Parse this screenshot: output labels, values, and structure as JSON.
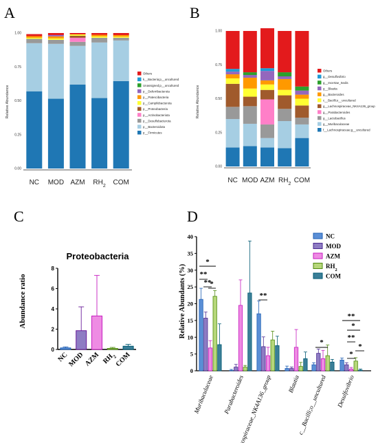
{
  "panels": {
    "a": "A",
    "b": "B",
    "c": "C",
    "d": "D"
  },
  "groups": [
    "NC",
    "MOD",
    "AZM",
    "RH2",
    "COM"
  ],
  "chart_data": [
    {
      "id": "A",
      "type": "bar",
      "stacked": true,
      "ylabel": "Relative Abundance",
      "ylim": [
        0,
        1
      ],
      "yticks": [
        "0.00",
        "0.25",
        "0.50",
        "0.75",
        "1.00"
      ],
      "categories": [
        "NC",
        "MOD",
        "AZM",
        "RH2",
        "COM"
      ],
      "series": [
        {
          "name": "p__Firmicutes",
          "color": "#1f77b4",
          "values": [
            0.57,
            0.515,
            0.62,
            0.52,
            0.645
          ]
        },
        {
          "name": "p__Bacteroidota",
          "color": "#a6cee3",
          "values": [
            0.355,
            0.405,
            0.285,
            0.41,
            0.3
          ]
        },
        {
          "name": "p__Desulfobacterota",
          "color": "#999999",
          "values": [
            0.032,
            0.03,
            0.03,
            0.035,
            0.02
          ]
        },
        {
          "name": "p__Actinobacteriota",
          "color": "#ff7fc8",
          "values": [
            0.0,
            0.0,
            0.03,
            0.0,
            0.0
          ]
        },
        {
          "name": "p__Proteobacteria",
          "color": "#a05a2c",
          "values": [
            0.0,
            0.0,
            0.015,
            0.0,
            0.0
          ]
        },
        {
          "name": "p__Campilobacterota",
          "color": "#ffff33",
          "values": [
            0.008,
            0.01,
            0.01,
            0.01,
            0.008
          ]
        },
        {
          "name": "p__Patescibacteria",
          "color": "#ff9900",
          "values": [
            0.012,
            0.015,
            0.0,
            0.012,
            0.012
          ]
        },
        {
          "name": "p__Deferribacterota",
          "color": "#9467bd",
          "values": [
            0.0,
            0.01,
            0.0,
            0.0,
            0.0
          ]
        },
        {
          "name": "Unassigned;p__uncultured",
          "color": "#2ca02c",
          "values": [
            0.0,
            0.0,
            0.0,
            0.0,
            0.0
          ]
        },
        {
          "name": "k__Bacteria;p__uncultured",
          "color": "#1f9bd6",
          "values": [
            0.0,
            0.0,
            0.0,
            0.0,
            0.0
          ]
        },
        {
          "name": "Others",
          "color": "#e31a1c",
          "values": [
            0.015,
            0.015,
            0.01,
            0.013,
            0.015
          ]
        }
      ]
    },
    {
      "id": "B",
      "type": "bar",
      "stacked": true,
      "ylabel": "Relative Abundance",
      "ylim": [
        0,
        1
      ],
      "yticks": [
        "0.00",
        "0.25",
        "0.50",
        "0.75",
        "1.00"
      ],
      "categories": [
        "NC",
        "MOD",
        "AZM",
        "RH2",
        "COM"
      ],
      "series": [
        {
          "name": "f__Lachnospiraceae;g__uncultured",
          "color": "#1f77b4",
          "values": [
            0.14,
            0.15,
            0.14,
            0.135,
            0.21
          ]
        },
        {
          "name": "g__Muribaculaceae",
          "color": "#a6cee3",
          "values": [
            0.21,
            0.165,
            0.07,
            0.2,
            0.1
          ]
        },
        {
          "name": "g__Lactobacillus",
          "color": "#999999",
          "values": [
            0.09,
            0.13,
            0.1,
            0.09,
            0.05
          ]
        },
        {
          "name": "g__Parabacteroides",
          "color": "#ff7fc8",
          "values": [
            0.0,
            0.0,
            0.185,
            0.0,
            0.0
          ]
        },
        {
          "name": "g__Lachnospiraceae_NK4A136_group",
          "color": "#a05a2c",
          "values": [
            0.17,
            0.07,
            0.07,
            0.1,
            0.09
          ]
        },
        {
          "name": "c__Bacilli;o__uncultured",
          "color": "#ffff33",
          "values": [
            0.04,
            0.06,
            0.04,
            0.04,
            0.05
          ]
        },
        {
          "name": "g__Bacteroides",
          "color": "#ff9900",
          "values": [
            0.03,
            0.08,
            0.03,
            0.08,
            0.03
          ]
        },
        {
          "name": "g__Blautia",
          "color": "#9467bd",
          "values": [
            0.02,
            0.02,
            0.07,
            0.02,
            0.03
          ]
        },
        {
          "name": "g__Incertae_Sedis",
          "color": "#2ca02c",
          "values": [
            0.0,
            0.02,
            0.0,
            0.03,
            0.03
          ]
        },
        {
          "name": "g__Desulfovibrio",
          "color": "#1f9bd6",
          "values": [
            0.02,
            0.0,
            0.02,
            0.0,
            0.0
          ]
        },
        {
          "name": "Others",
          "color": "#e31a1c",
          "values": [
            0.28,
            0.305,
            0.295,
            0.305,
            0.41
          ]
        }
      ]
    },
    {
      "id": "C",
      "type": "bar",
      "title": "Proteobacteria",
      "ylabel": "Abundance ratio",
      "ylim": [
        0,
        8
      ],
      "yticks": [
        "0",
        "2",
        "4",
        "6",
        "8"
      ],
      "categories": [
        "NC",
        "MOD",
        "AZM",
        "RH2",
        "COM"
      ],
      "values": [
        0.15,
        1.85,
        3.3,
        0.1,
        0.32
      ],
      "errors": [
        0.1,
        2.35,
        4.0,
        0.1,
        0.18
      ],
      "colors": [
        "#5b8fd6",
        "#8e7cc3",
        "#ee8be3",
        "#b6d77a",
        "#3b7f98"
      ],
      "edge_colors": [
        "#1f5fb4",
        "#6a1b9a",
        "#c51bbf",
        "#4f8a10",
        "#005a73"
      ]
    },
    {
      "id": "D",
      "type": "bar",
      "ylabel": "Relative Abundants (%)",
      "ylim": [
        0,
        40
      ],
      "yticks": [
        "0",
        "5",
        "10",
        "15",
        "20",
        "25",
        "30",
        "35",
        "40"
      ],
      "categories": [
        "Muribaculaceae",
        "Parabacteroides",
        "Lachnospiraceae_NK4A136_group",
        "Blautia",
        "c__Bacilli;o__uncultured",
        "Desulfovibrio"
      ],
      "series": [
        {
          "name": "NC",
          "color": "#5b8fd6",
          "edge": "#1f5fb4",
          "values": [
            21.3,
            0.1,
            17.0,
            0.7,
            1.8,
            3.2
          ],
          "errors": [
            3.3,
            0.3,
            3.8,
            0.7,
            0.6,
            0.6
          ]
        },
        {
          "name": "MOD",
          "color": "#8e7cc3",
          "edge": "#4b2a91",
          "values": [
            15.7,
            1.1,
            7.2,
            0.7,
            5.2,
            1.8
          ],
          "errors": [
            1.8,
            0.8,
            2.9,
            0.4,
            1.3,
            0.6
          ]
        },
        {
          "name": "AZM",
          "color": "#ee8be3",
          "edge": "#c51bbf",
          "values": [
            6.8,
            19.5,
            4.5,
            7.0,
            3.6,
            0.5
          ],
          "errors": [
            2.2,
            7.6,
            2.5,
            5.3,
            2.5,
            0.5
          ]
        },
        {
          "name": "RH2",
          "color": "#b6d77a",
          "edge": "#4f8a10",
          "values": [
            22.2,
            1.1,
            9.2,
            1.3,
            4.5,
            2.9
          ],
          "errors": [
            1.7,
            0.5,
            2.6,
            1.2,
            3.2,
            1.0
          ]
        },
        {
          "name": "COM",
          "color": "#3b7f98",
          "edge": "#005a73",
          "values": [
            7.8,
            23.2,
            7.5,
            3.6,
            2.6,
            0.2
          ],
          "errors": [
            6.2,
            15.5,
            2.8,
            2.0,
            0.8,
            0.3
          ]
        }
      ],
      "significance": [
        {
          "label": "*"
        },
        {
          "label": "**"
        },
        {
          "label": "**"
        },
        {
          "label": "*"
        },
        {
          "label": "**"
        },
        {
          "label": "*"
        },
        {
          "label": "**"
        },
        {
          "label": "*"
        },
        {
          "label": "**"
        },
        {
          "label": "*"
        },
        {
          "label": "*"
        }
      ]
    }
  ]
}
